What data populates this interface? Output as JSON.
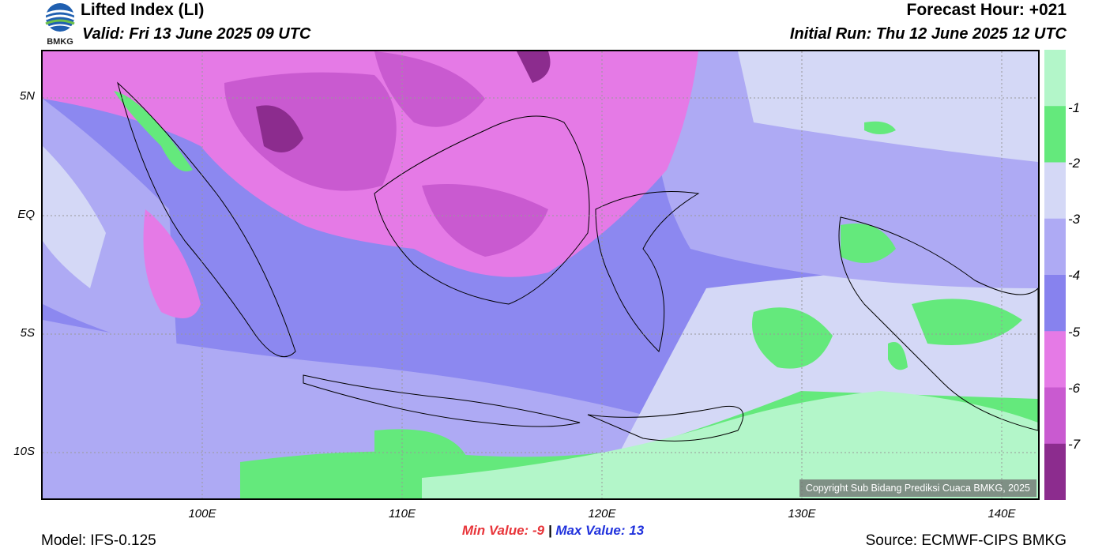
{
  "header": {
    "title": "Lifted Index (LI)",
    "valid": "Valid: Fri 13 June 2025 09 UTC",
    "forecast_hour": "Forecast Hour: +021",
    "initial_run": "Initial Run: Thu 12 June 2025 12 UTC",
    "logo_text": "BMKG"
  },
  "map": {
    "lat_labels": [
      "5N",
      "EQ",
      "5S",
      "10S"
    ],
    "lon_labels": [
      "100E",
      "110E",
      "120E",
      "130E",
      "140E"
    ],
    "copyright": "Copyright Sub Bidang Prediksi Cuaca BMKG, 2025"
  },
  "colorbar": {
    "labels": [
      "-1",
      "-2",
      "-3",
      "-4",
      "-5",
      "-6",
      "-7"
    ],
    "colors": [
      "#b3f6c9",
      "#64e97c",
      "#d4d8f6",
      "#aeaaf4",
      "#8782ee",
      "#e57ae6",
      "#c95ad0",
      "#8c2c8e"
    ]
  },
  "stats": {
    "min_label": "Min Value:",
    "min_value": "-9",
    "separator": "|",
    "max_label": "Max Value:",
    "max_value": "13"
  },
  "footer": {
    "model": "Model: IFS-0.125",
    "source": "Source: ECMWF-CIPS BMKG"
  }
}
